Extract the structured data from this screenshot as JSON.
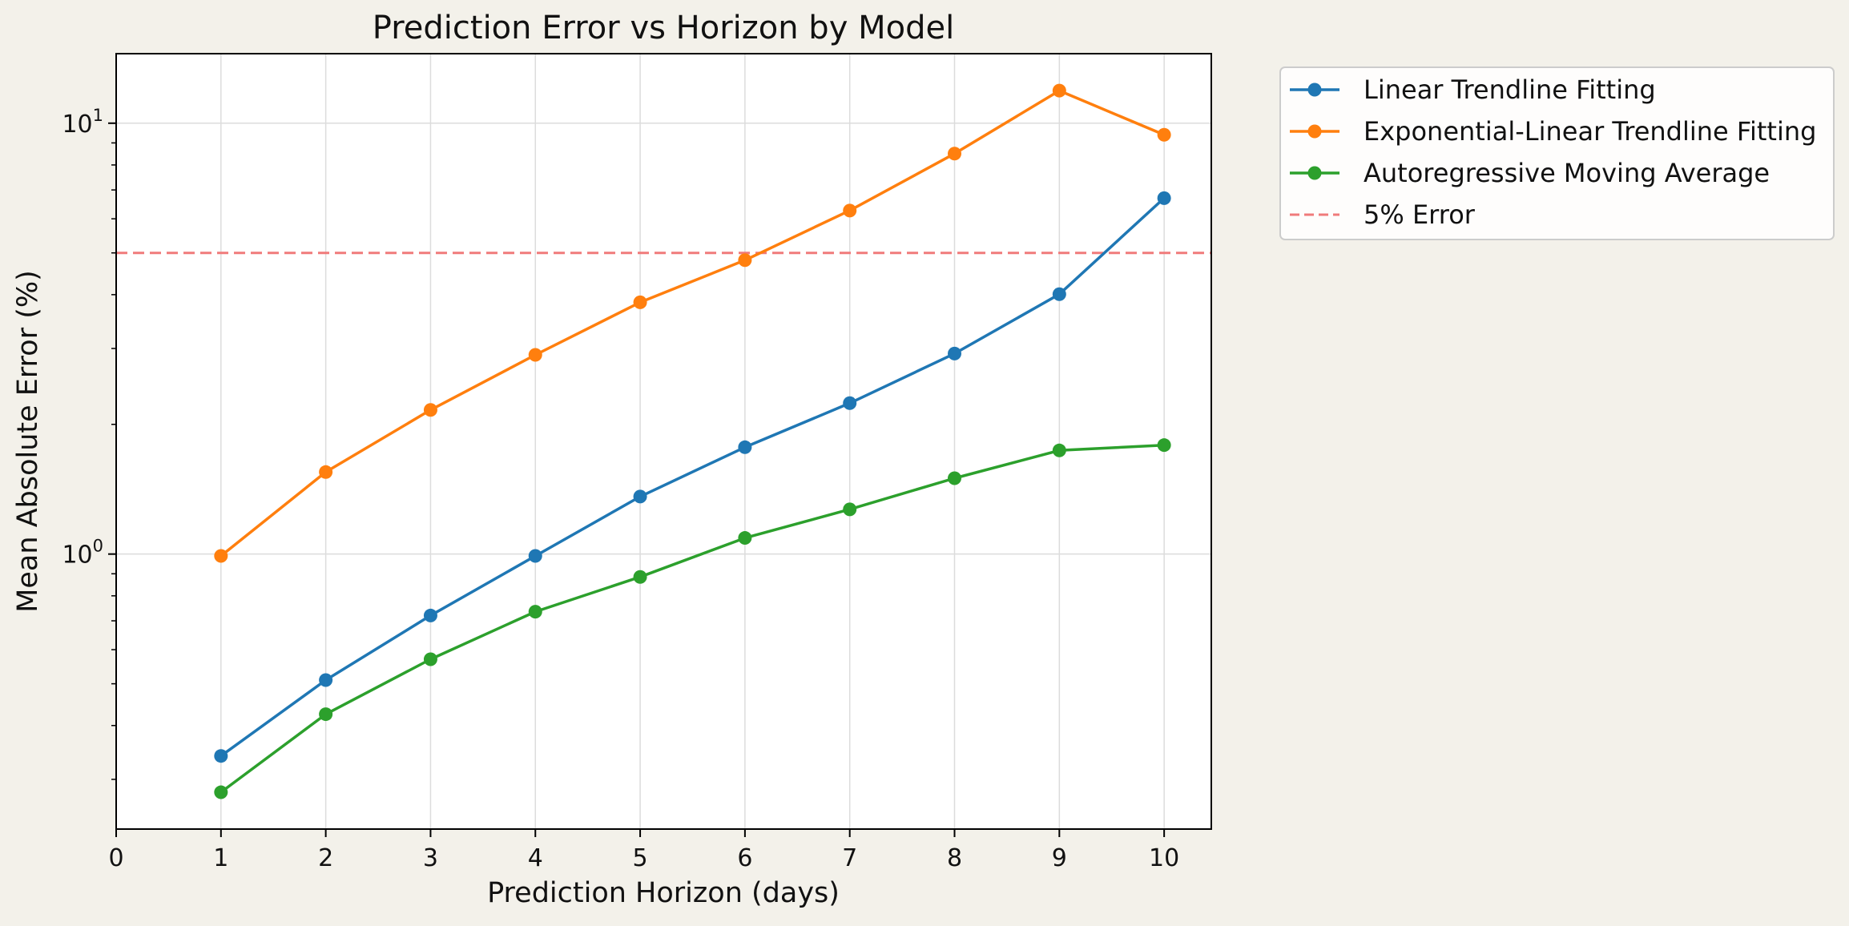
{
  "chart_data": {
    "type": "line",
    "title": "Prediction Error vs Horizon by Model",
    "xlabel": "Prediction Horizon (days)",
    "ylabel": "Mean Absolute Error (%)",
    "yscale": "log",
    "xlim": [
      0,
      10.45
    ],
    "ylim": [
      0.23,
      14.5
    ],
    "x_ticks": [
      0,
      1,
      2,
      3,
      4,
      5,
      6,
      7,
      8,
      9,
      10
    ],
    "y_ticks": [
      {
        "value": 1,
        "base": "10",
        "exp": "0"
      },
      {
        "value": 10,
        "base": "10",
        "exp": "1"
      }
    ],
    "grid": true,
    "legend_position": "outside-top-right",
    "x": [
      1,
      2,
      3,
      4,
      5,
      6,
      7,
      8,
      9,
      10
    ],
    "series": [
      {
        "name": "Linear Trendline Fitting",
        "color": "#1f77b4",
        "values": [
          0.34,
          0.51,
          0.72,
          0.99,
          1.36,
          1.77,
          2.24,
          2.92,
          4.01,
          6.7
        ]
      },
      {
        "name": "Exponential-Linear Trendline Fitting",
        "color": "#ff7f0e",
        "values": [
          0.99,
          1.55,
          2.16,
          2.9,
          3.84,
          4.81,
          6.27,
          8.5,
          11.9,
          9.4
        ]
      },
      {
        "name": "Autoregressive Moving Average",
        "color": "#2ca02c",
        "values": [
          0.28,
          0.425,
          0.57,
          0.735,
          0.885,
          1.09,
          1.27,
          1.5,
          1.74,
          1.79
        ]
      }
    ],
    "reference_line": {
      "name": "5% Error",
      "value": 5,
      "color": "#f07b7b",
      "style": "dashed"
    }
  }
}
